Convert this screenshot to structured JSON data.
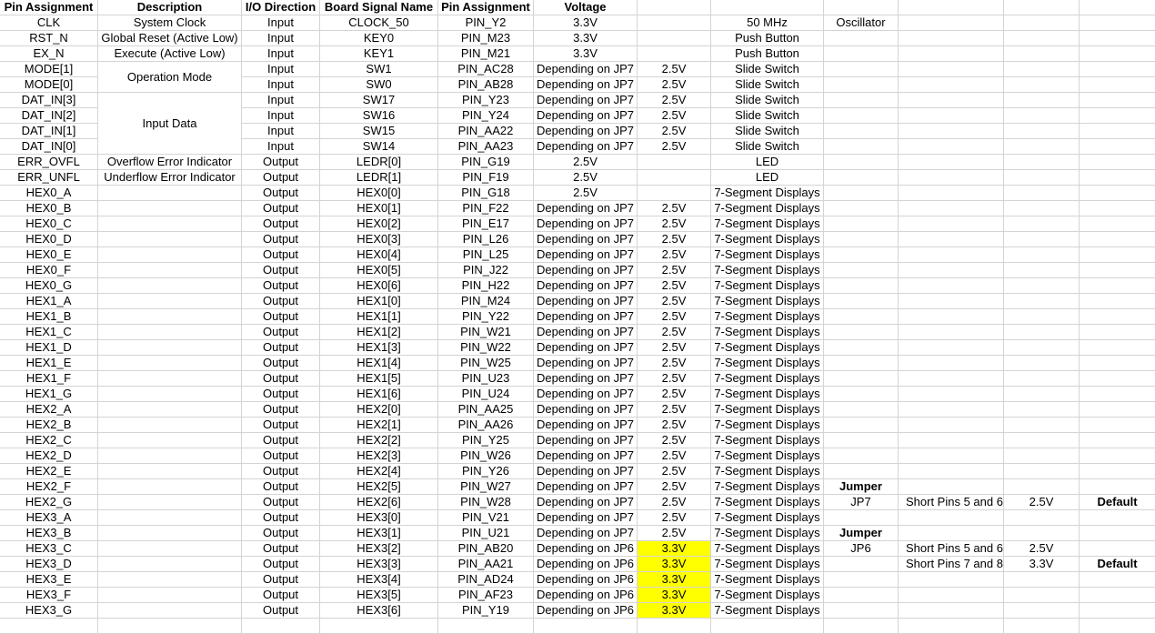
{
  "headers": [
    "Pin Assignment",
    "Description",
    "I/O Direction",
    "Board Signal Name",
    "Pin Assignment",
    "Voltage",
    "",
    "",
    "",
    "",
    "",
    "",
    "",
    "",
    ""
  ],
  "rows": [
    [
      "CLK",
      "System Clock",
      "Input",
      "CLOCK_50",
      "PIN_Y2",
      "3.3V",
      "",
      "",
      "50 MHz",
      "Oscillator",
      "",
      "",
      "",
      "",
      ""
    ],
    [
      "RST_N",
      "Global Reset (Active Low)",
      "Input",
      "KEY0",
      "PIN_M23",
      "3.3V",
      "",
      "",
      "Push Button",
      "",
      "",
      "",
      "",
      "",
      ""
    ],
    [
      "EX_N",
      "Execute (Active Low)",
      "Input",
      "KEY1",
      "PIN_M21",
      "3.3V",
      "",
      "",
      "Push Button",
      "",
      "",
      "",
      "",
      "",
      ""
    ],
    [
      "MODE[1]",
      "",
      "Input",
      "SW1",
      "PIN_AC28",
      "Depending on JP7",
      "2.5V",
      "",
      "Slide Switch",
      "",
      "",
      "",
      "",
      "",
      ""
    ],
    [
      "MODE[0]",
      "",
      "Input",
      "SW0",
      "PIN_AB28",
      "Depending on JP7",
      "2.5V",
      "",
      "Slide Switch",
      "",
      "",
      "",
      "",
      "",
      ""
    ],
    [
      "DAT_IN[3]",
      "",
      "Input",
      "SW17",
      "PIN_Y23",
      "Depending on JP7",
      "2.5V",
      "",
      "Slide Switch",
      "",
      "",
      "",
      "",
      "",
      ""
    ],
    [
      "DAT_IN[2]",
      "",
      "Input",
      "SW16",
      "PIN_Y24",
      "Depending on JP7",
      "2.5V",
      "",
      "Slide Switch",
      "",
      "",
      "",
      "",
      "",
      ""
    ],
    [
      "DAT_IN[1]",
      "",
      "Input",
      "SW15",
      "PIN_AA22",
      "Depending on JP7",
      "2.5V",
      "",
      "Slide Switch",
      "",
      "",
      "",
      "",
      "",
      ""
    ],
    [
      "DAT_IN[0]",
      "",
      "Input",
      "SW14",
      "PIN_AA23",
      "Depending on JP7",
      "2.5V",
      "",
      "Slide Switch",
      "",
      "",
      "",
      "",
      "",
      ""
    ],
    [
      "ERR_OVFL",
      "Overflow Error Indicator",
      "Output",
      "LEDR[0]",
      "PIN_G19",
      "2.5V",
      "",
      "",
      "LED",
      "",
      "",
      "",
      "",
      "",
      ""
    ],
    [
      "ERR_UNFL",
      "Underflow Error Indicator",
      "Output",
      "LEDR[1]",
      "PIN_F19",
      "2.5V",
      "",
      "",
      "LED",
      "",
      "",
      "",
      "",
      "",
      ""
    ],
    [
      "HEX0_A",
      "",
      "Output",
      "HEX0[0]",
      "PIN_G18",
      "2.5V",
      "",
      "",
      "7-Segment Displays",
      "",
      "",
      "",
      "",
      "",
      ""
    ],
    [
      "HEX0_B",
      "",
      "Output",
      "HEX0[1]",
      "PIN_F22",
      "Depending on JP7",
      "2.5V",
      "",
      "7-Segment Displays",
      "",
      "",
      "",
      "",
      "",
      ""
    ],
    [
      "HEX0_C",
      "",
      "Output",
      "HEX0[2]",
      "PIN_E17",
      "Depending on JP7",
      "2.5V",
      "",
      "7-Segment Displays",
      "",
      "",
      "",
      "",
      "",
      ""
    ],
    [
      "HEX0_D",
      "",
      "Output",
      "HEX0[3]",
      "PIN_L26",
      "Depending on JP7",
      "2.5V",
      "",
      "7-Segment Displays",
      "",
      "",
      "",
      "",
      "",
      ""
    ],
    [
      "HEX0_E",
      "",
      "Output",
      "HEX0[4]",
      "PIN_L25",
      "Depending on JP7",
      "2.5V",
      "",
      "7-Segment Displays",
      "",
      "",
      "",
      "",
      "",
      ""
    ],
    [
      "HEX0_F",
      "",
      "Output",
      "HEX0[5]",
      "PIN_J22",
      "Depending on JP7",
      "2.5V",
      "",
      "7-Segment Displays",
      "",
      "",
      "",
      "",
      "",
      ""
    ],
    [
      "HEX0_G",
      "",
      "Output",
      "HEX0[6]",
      "PIN_H22",
      "Depending on JP7",
      "2.5V",
      "",
      "7-Segment Displays",
      "",
      "",
      "",
      "",
      "",
      ""
    ],
    [
      "HEX1_A",
      "",
      "Output",
      "HEX1[0]",
      "PIN_M24",
      "Depending on JP7",
      "2.5V",
      "",
      "7-Segment Displays",
      "",
      "",
      "",
      "",
      "",
      ""
    ],
    [
      "HEX1_B",
      "",
      "Output",
      "HEX1[1]",
      "PIN_Y22",
      "Depending on JP7",
      "2.5V",
      "",
      "7-Segment Displays",
      "",
      "",
      "",
      "",
      "",
      ""
    ],
    [
      "HEX1_C",
      "",
      "Output",
      "HEX1[2]",
      "PIN_W21",
      "Depending on JP7",
      "2.5V",
      "",
      "7-Segment Displays",
      "",
      "",
      "",
      "",
      "",
      ""
    ],
    [
      "HEX1_D",
      "",
      "Output",
      "HEX1[3]",
      "PIN_W22",
      "Depending on JP7",
      "2.5V",
      "",
      "7-Segment Displays",
      "",
      "",
      "",
      "",
      "",
      ""
    ],
    [
      "HEX1_E",
      "",
      "Output",
      "HEX1[4]",
      "PIN_W25",
      "Depending on JP7",
      "2.5V",
      "",
      "7-Segment Displays",
      "",
      "",
      "",
      "",
      "",
      ""
    ],
    [
      "HEX1_F",
      "",
      "Output",
      "HEX1[5]",
      "PIN_U23",
      "Depending on JP7",
      "2.5V",
      "",
      "7-Segment Displays",
      "",
      "",
      "",
      "",
      "",
      ""
    ],
    [
      "HEX1_G",
      "",
      "Output",
      "HEX1[6]",
      "PIN_U24",
      "Depending on JP7",
      "2.5V",
      "",
      "7-Segment Displays",
      "",
      "",
      "",
      "",
      "",
      ""
    ],
    [
      "HEX2_A",
      "",
      "Output",
      "HEX2[0]",
      "PIN_AA25",
      "Depending on JP7",
      "2.5V",
      "",
      "7-Segment Displays",
      "",
      "",
      "",
      "",
      "",
      ""
    ],
    [
      "HEX2_B",
      "",
      "Output",
      "HEX2[1]",
      "PIN_AA26",
      "Depending on JP7",
      "2.5V",
      "",
      "7-Segment Displays",
      "",
      "",
      "",
      "",
      "",
      ""
    ],
    [
      "HEX2_C",
      "",
      "Output",
      "HEX2[2]",
      "PIN_Y25",
      "Depending on JP7",
      "2.5V",
      "",
      "7-Segment Displays",
      "",
      "",
      "",
      "",
      "",
      ""
    ],
    [
      "HEX2_D",
      "",
      "Output",
      "HEX2[3]",
      "PIN_W26",
      "Depending on JP7",
      "2.5V",
      "",
      "7-Segment Displays",
      "",
      "",
      "",
      "",
      "",
      ""
    ],
    [
      "HEX2_E",
      "",
      "Output",
      "HEX2[4]",
      "PIN_Y26",
      "Depending on JP7",
      "2.5V",
      "",
      "7-Segment Displays",
      "",
      "",
      "",
      "",
      "",
      ""
    ],
    [
      "HEX2_F",
      "",
      "Output",
      "HEX2[5]",
      "PIN_W27",
      "Depending on JP7",
      "2.5V",
      "",
      "7-Segment Displays",
      "Jumper",
      "",
      "",
      "",
      "",
      ""
    ],
    [
      "HEX2_G",
      "",
      "Output",
      "HEX2[6]",
      "PIN_W28",
      "Depending on JP7",
      "2.5V",
      "",
      "7-Segment Displays",
      "JP7",
      "Short Pins 5 and 6",
      "2.5V",
      "Default",
      "",
      ""
    ],
    [
      "HEX3_A",
      "",
      "Output",
      "HEX3[0]",
      "PIN_V21",
      "Depending on JP7",
      "2.5V",
      "",
      "7-Segment Displays",
      "",
      "",
      "",
      "",
      "",
      ""
    ],
    [
      "HEX3_B",
      "",
      "Output",
      "HEX3[1]",
      "PIN_U21",
      "Depending on JP7",
      "2.5V",
      "",
      "7-Segment Displays",
      "Jumper",
      "",
      "",
      "",
      "",
      ""
    ],
    [
      "HEX3_C",
      "",
      "Output",
      "HEX3[2]",
      "PIN_AB20",
      "Depending on JP6",
      "3.3V",
      "",
      "7-Segment Displays",
      "JP6",
      "Short Pins 5 and 6",
      "2.5V",
      "",
      "",
      ""
    ],
    [
      "HEX3_D",
      "",
      "Output",
      "HEX3[3]",
      "PIN_AA21",
      "Depending on JP6",
      "3.3V",
      "",
      "7-Segment Displays",
      "",
      "Short Pins 7 and 8",
      "3.3V",
      "Default",
      "",
      ""
    ],
    [
      "HEX3_E",
      "",
      "Output",
      "HEX3[4]",
      "PIN_AD24",
      "Depending on JP6",
      "3.3V",
      "",
      "7-Segment Displays",
      "",
      "",
      "",
      "",
      "",
      ""
    ],
    [
      "HEX3_F",
      "",
      "Output",
      "HEX3[5]",
      "PIN_AF23",
      "Depending on JP6",
      "3.3V",
      "",
      "7-Segment Displays",
      "",
      "",
      "",
      "",
      "",
      ""
    ],
    [
      "HEX3_G",
      "",
      "Output",
      "HEX3[6]",
      "PIN_Y19",
      "Depending on JP6",
      "3.3V",
      "",
      "7-Segment Displays",
      "",
      "",
      "",
      "",
      "",
      ""
    ],
    [
      "",
      "",
      "",
      "",
      "",
      "",
      "",
      "",
      "",
      "",
      "",
      "",
      "",
      "",
      ""
    ]
  ],
  "merged": {
    "operation_mode": "Operation Mode",
    "input_data": "Input Data"
  },
  "highlight_color": "#ffff00"
}
